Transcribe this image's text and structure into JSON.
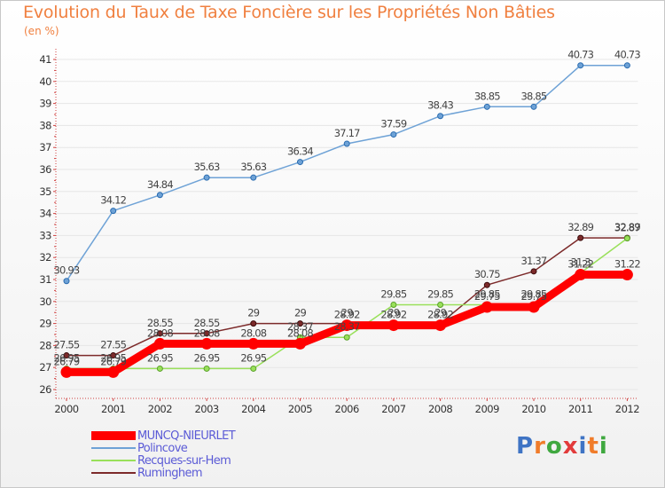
{
  "title": "Evolution du Taux de Taxe Foncière sur les Propriétés Non Bâties",
  "unit": "(en %)",
  "brand": {
    "letters": [
      "P",
      "r",
      "o",
      "x",
      "i",
      "t",
      "i"
    ],
    "colors": [
      "#3f74c4",
      "#f07c2a",
      "#3fa83f",
      "#e23b3b",
      "#3f74c4",
      "#f07c2a",
      "#3fa83f"
    ]
  },
  "chart_data": {
    "type": "line",
    "title": "Evolution du Taux de Taxe Foncière sur les Propriétés Non Bâties",
    "ylabel": "(en %)",
    "xlabel": "",
    "x": [
      "2000",
      "2001",
      "2002",
      "2003",
      "2004",
      "2005",
      "2006",
      "2007",
      "2008",
      "2009",
      "2010",
      "2011",
      "2012"
    ],
    "yticks": [
      26,
      27,
      28,
      29,
      30,
      31,
      32,
      33,
      34,
      35,
      36,
      37,
      38,
      39,
      40,
      41
    ],
    "ylim": [
      26,
      41.5
    ],
    "series": [
      {
        "name": "MUNCQ-NIEURLET",
        "color": "#ff0000",
        "values": [
          26.79,
          26.79,
          28.08,
          28.08,
          28.08,
          28.08,
          28.92,
          28.92,
          28.92,
          29.75,
          29.75,
          31.22,
          31.22
        ],
        "labels": [
          "26.79",
          "26.79",
          "28.08",
          "28.08",
          "28.08",
          "28.08",
          "28.92",
          "28.92",
          "28.92",
          "29.75",
          "29.75",
          "31.22",
          "31.22"
        ]
      },
      {
        "name": "Polincove",
        "color": "#6ea2d6",
        "values": [
          30.93,
          34.12,
          34.84,
          35.63,
          35.63,
          36.34,
          37.17,
          37.59,
          38.43,
          38.85,
          38.85,
          40.73,
          40.73
        ],
        "labels": [
          "30.93",
          "34.12",
          "34.84",
          "35.63",
          "35.63",
          "36.34",
          "37.17",
          "37.59",
          "38.43",
          "38.85",
          "38.85",
          "40.73",
          "40.73"
        ]
      },
      {
        "name": "Recques-sur-Hem",
        "color": "#99e05a",
        "values": [
          26.95,
          26.95,
          26.95,
          26.95,
          26.95,
          28.37,
          28.37,
          29.85,
          29.85,
          29.85,
          29.85,
          31.3,
          32.87
        ],
        "labels": [
          "26.95",
          "26.95",
          "26.95",
          "26.95",
          "26.95",
          "28.37",
          "28.37",
          "29.85",
          "29.85",
          "29.85",
          "29.85",
          "31.3",
          "32.87"
        ]
      },
      {
        "name": "Ruminghem",
        "color": "#7c2a2a",
        "values": [
          27.55,
          27.55,
          28.55,
          28.55,
          29,
          29,
          29,
          29,
          29,
          30.75,
          31.37,
          32.89,
          32.89
        ],
        "labels": [
          "27.55",
          "27.55",
          "28.55",
          "28.55",
          "29",
          "29",
          "29",
          "29",
          "29",
          "30.75",
          "31.37",
          "32.89",
          "32.89"
        ]
      }
    ]
  }
}
